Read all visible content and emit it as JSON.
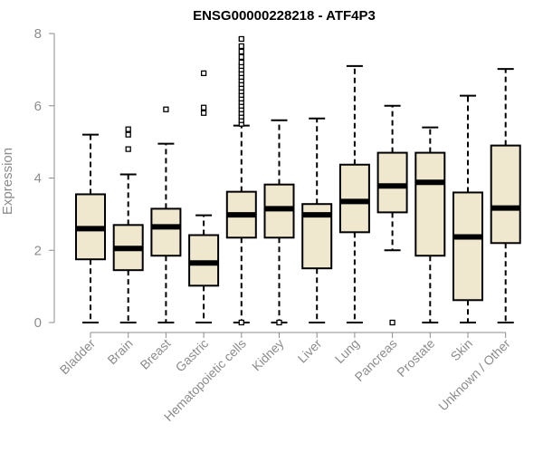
{
  "chart_data": {
    "type": "boxplot",
    "title": "ENSG00000228218 - ATF4P3",
    "xlabel": "",
    "ylabel": "Expression",
    "ylim": [
      0,
      8
    ],
    "yticks": [
      0,
      2,
      4,
      6,
      8
    ],
    "grid": false,
    "box_fill": "#efe8cf",
    "categories": [
      "Bladder",
      "Brain",
      "Breast",
      "Gastric",
      "Hematopoietic cells",
      "Kidney",
      "Liver",
      "Lung",
      "Pancreas",
      "Prostate",
      "Skin",
      "Unknown / Other"
    ],
    "boxes": [
      {
        "min": 0.0,
        "q1": 1.75,
        "median": 2.6,
        "q3": 3.55,
        "max": 5.2,
        "outliers": []
      },
      {
        "min": 0.0,
        "q1": 1.45,
        "median": 2.05,
        "q3": 2.7,
        "max": 4.1,
        "outliers": [
          4.8,
          5.2,
          5.35
        ]
      },
      {
        "min": 0.0,
        "q1": 1.85,
        "median": 2.65,
        "q3": 3.15,
        "max": 4.95,
        "outliers": [
          5.9
        ]
      },
      {
        "min": 0.0,
        "q1": 1.02,
        "median": 1.65,
        "q3": 2.42,
        "max": 2.97,
        "outliers": [
          5.8,
          5.95,
          6.9
        ]
      },
      {
        "min": 0.0,
        "q1": 2.35,
        "median": 2.98,
        "q3": 3.62,
        "max": 5.45,
        "outliers": [
          0.0,
          5.5,
          5.6,
          5.7,
          5.8,
          5.9,
          6.0,
          6.1,
          6.2,
          6.3,
          6.4,
          6.5,
          6.6,
          6.7,
          6.8,
          6.9,
          7.0,
          7.1,
          7.2,
          7.35,
          7.5,
          7.65,
          7.85
        ]
      },
      {
        "min": 0.0,
        "q1": 2.35,
        "median": 3.15,
        "q3": 3.82,
        "max": 5.6,
        "outliers": [
          0.0
        ]
      },
      {
        "min": 0.0,
        "q1": 1.5,
        "median": 2.98,
        "q3": 3.28,
        "max": 5.65,
        "outliers": []
      },
      {
        "min": 0.0,
        "q1": 2.5,
        "median": 3.35,
        "q3": 4.37,
        "max": 7.1,
        "outliers": []
      },
      {
        "min": 2.0,
        "q1": 3.05,
        "median": 3.78,
        "q3": 4.7,
        "max": 6.0,
        "outliers": [
          0.0
        ]
      },
      {
        "min": 0.0,
        "q1": 1.85,
        "median": 3.88,
        "q3": 4.7,
        "max": 5.4,
        "outliers": []
      },
      {
        "min": 0.0,
        "q1": 0.62,
        "median": 2.37,
        "q3": 3.6,
        "max": 6.28,
        "outliers": []
      },
      {
        "min": 0.0,
        "q1": 2.2,
        "median": 3.17,
        "q3": 4.9,
        "max": 7.02,
        "outliers": []
      }
    ]
  }
}
